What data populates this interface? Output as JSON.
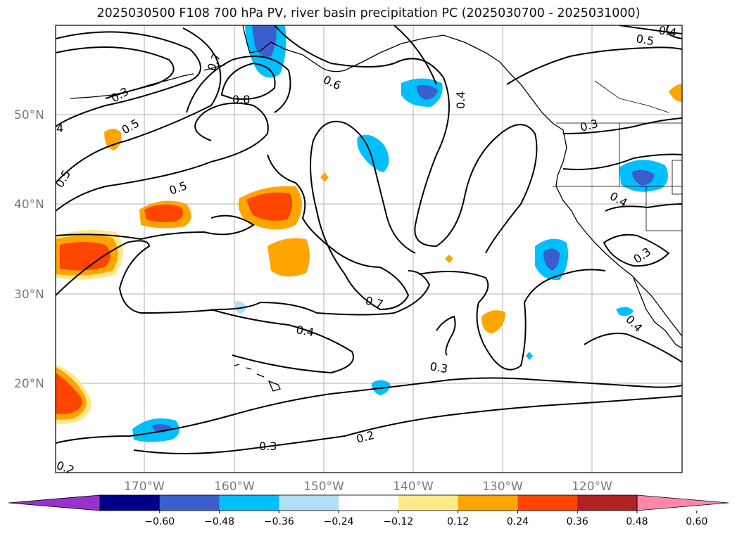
{
  "title": "2025030500 F108 700 hPa PV, river basin precipitation PC (2025030700 - 2025031000)",
  "lat_labels": [
    "50°N",
    "40°N",
    "30°N",
    "20°N"
  ],
  "lon_labels": [
    "170°W",
    "160°W",
    "150°W",
    "140°W",
    "130°W",
    "120°W"
  ],
  "contour_labels": [
    "0.3",
    "0.5",
    "0.5",
    "0.5",
    "0.7",
    "0.8",
    "0.6",
    "0.4",
    "0.3",
    "0.5",
    "0.4",
    "0.3",
    "0.4",
    "0.7",
    "0.4",
    "0.3",
    "0.2",
    "0.3",
    "0.2",
    "0.4",
    "0.6",
    "4"
  ],
  "colorbar": {
    "ticks": [
      "−0.60",
      "−0.48",
      "−0.36",
      "−0.24",
      "−0.12",
      "0.12",
      "0.24",
      "0.36",
      "0.48",
      "0.60"
    ],
    "colors": [
      "#9932cc",
      "#00008b",
      "#3a5fcd",
      "#00bfff",
      "#b0e0f6",
      "#ffffff",
      "#ffe98a",
      "#ffa500",
      "#ff4500",
      "#b22222",
      "#ff88aa"
    ]
  },
  "map_extent": {
    "lon": [
      -180,
      -110
    ],
    "lat": [
      10,
      60
    ]
  }
}
